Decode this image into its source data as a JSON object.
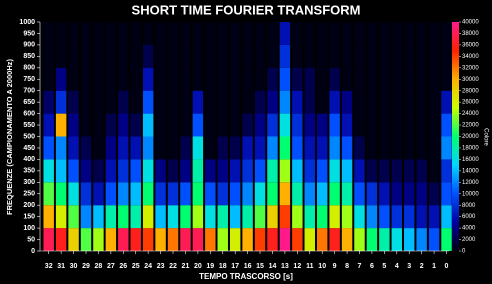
{
  "chart_data": {
    "type": "heatmap",
    "title": "SHORT TIME FOURIER TRANSFORM",
    "x_label": "TEMPO TRASCORSO [s]",
    "y_label": "FREQUENZE (CAMPIONAMENTO A 2000Hz)",
    "colorbar_label": "Colore",
    "x": [
      32,
      31,
      30,
      29,
      28,
      27,
      26,
      25,
      24,
      23,
      22,
      21,
      20,
      19,
      18,
      17,
      16,
      15,
      14,
      13,
      12,
      11,
      10,
      9,
      8,
      7,
      6,
      5,
      4,
      3,
      2,
      1,
      0
    ],
    "y_bins": [
      0,
      100,
      200,
      300,
      400,
      500,
      600,
      700,
      800,
      900,
      1000
    ],
    "values": [
      [
        38000,
        30000,
        22000,
        16000,
        10000,
        6000,
        3000,
        0,
        0,
        0
      ],
      [
        36000,
        26000,
        20000,
        14000,
        12000,
        30000,
        8000,
        4000,
        0,
        0
      ],
      [
        28000,
        22000,
        16000,
        10000,
        6000,
        4000,
        2000,
        0,
        0,
        0
      ],
      [
        22000,
        12000,
        8000,
        4000,
        2000,
        0,
        0,
        0,
        0,
        0
      ],
      [
        24000,
        14000,
        6000,
        2000,
        0,
        0,
        0,
        0,
        0,
        0
      ],
      [
        30000,
        18000,
        10000,
        6000,
        4000,
        2000,
        0,
        0,
        0,
        0
      ],
      [
        38000,
        20000,
        12000,
        8000,
        6000,
        4000,
        2000,
        0,
        0,
        0
      ],
      [
        36000,
        18000,
        14000,
        10000,
        6000,
        2000,
        0,
        0,
        0,
        0
      ],
      [
        34000,
        26000,
        20000,
        16000,
        12000,
        14000,
        10000,
        6000,
        2000,
        0
      ],
      [
        30000,
        14000,
        8000,
        4000,
        0,
        0,
        0,
        0,
        0,
        0
      ],
      [
        32000,
        16000,
        8000,
        2000,
        0,
        0,
        0,
        0,
        0,
        0
      ],
      [
        38000,
        20000,
        10000,
        4000,
        2000,
        0,
        0,
        0,
        0,
        0
      ],
      [
        38000,
        24000,
        20000,
        18000,
        16000,
        10000,
        6000,
        0,
        0,
        0
      ],
      [
        32000,
        16000,
        10000,
        4000,
        0,
        0,
        0,
        0,
        0,
        0
      ],
      [
        24000,
        18000,
        8000,
        4000,
        2000,
        0,
        0,
        0,
        0,
        0
      ],
      [
        26000,
        14000,
        10000,
        6000,
        2000,
        0,
        0,
        0,
        0,
        0
      ],
      [
        30000,
        18000,
        12000,
        8000,
        6000,
        2000,
        0,
        0,
        0,
        0
      ],
      [
        34000,
        22000,
        16000,
        10000,
        6000,
        4000,
        2000,
        0,
        0,
        0
      ],
      [
        36000,
        28000,
        20000,
        18000,
        12000,
        8000,
        4000,
        2000,
        0,
        0
      ],
      [
        40000,
        34000,
        30000,
        24000,
        20000,
        16000,
        12000,
        10000,
        8000,
        6000
      ],
      [
        34000,
        24000,
        18000,
        14000,
        10000,
        8000,
        6000,
        2000,
        0,
        0
      ],
      [
        26000,
        18000,
        12000,
        8000,
        6000,
        4000,
        2000,
        2000,
        0,
        0
      ],
      [
        32000,
        20000,
        14000,
        10000,
        6000,
        4000,
        0,
        0,
        0,
        0
      ],
      [
        36000,
        26000,
        20000,
        16000,
        12000,
        10000,
        6000,
        2000,
        0,
        0
      ],
      [
        30000,
        24000,
        18000,
        14000,
        10000,
        6000,
        4000,
        0,
        0,
        0
      ],
      [
        24000,
        16000,
        10000,
        6000,
        2000,
        0,
        0,
        0,
        0,
        0
      ],
      [
        20000,
        12000,
        8000,
        2000,
        0,
        0,
        0,
        0,
        0,
        0
      ],
      [
        18000,
        10000,
        6000,
        2000,
        0,
        0,
        0,
        0,
        0,
        0
      ],
      [
        16000,
        8000,
        4000,
        2000,
        0,
        0,
        0,
        0,
        0,
        0
      ],
      [
        14000,
        8000,
        4000,
        2000,
        0,
        0,
        0,
        0,
        0,
        0
      ],
      [
        12000,
        6000,
        4000,
        2000,
        0,
        0,
        0,
        0,
        0,
        0
      ],
      [
        10000,
        6000,
        2000,
        0,
        0,
        0,
        0,
        0,
        0,
        0
      ],
      [
        20000,
        14000,
        10000,
        8000,
        12000,
        10000,
        6000,
        0,
        0,
        0
      ]
    ],
    "xlim": [
      32.7,
      -0.2
    ],
    "xticks": [
      32,
      31,
      30,
      29,
      28,
      27,
      26,
      25,
      24,
      23,
      22,
      21,
      20,
      19,
      18,
      17,
      16,
      15,
      14,
      13,
      12,
      11,
      10,
      9,
      8,
      7,
      6,
      5,
      4,
      3,
      2,
      1,
      0
    ],
    "ylim": [
      0,
      1000
    ],
    "yticks": [
      0,
      50,
      100,
      150,
      200,
      250,
      300,
      350,
      400,
      450,
      500,
      550,
      600,
      650,
      700,
      750,
      800,
      850,
      900,
      950,
      1000
    ],
    "zlim": [
      0,
      40000
    ],
    "zticks": [
      0,
      2000,
      4000,
      6000,
      8000,
      10000,
      12000,
      14000,
      16000,
      18000,
      20000,
      22000,
      24000,
      26000,
      28000,
      30000,
      32000,
      34000,
      36000,
      38000,
      40000
    ],
    "colormap": [
      "#000014",
      "#0000a0",
      "#0050ff",
      "#00d8ff",
      "#00ff70",
      "#c8ff00",
      "#ffb000",
      "#ff2000",
      "#ff1a8c"
    ]
  }
}
